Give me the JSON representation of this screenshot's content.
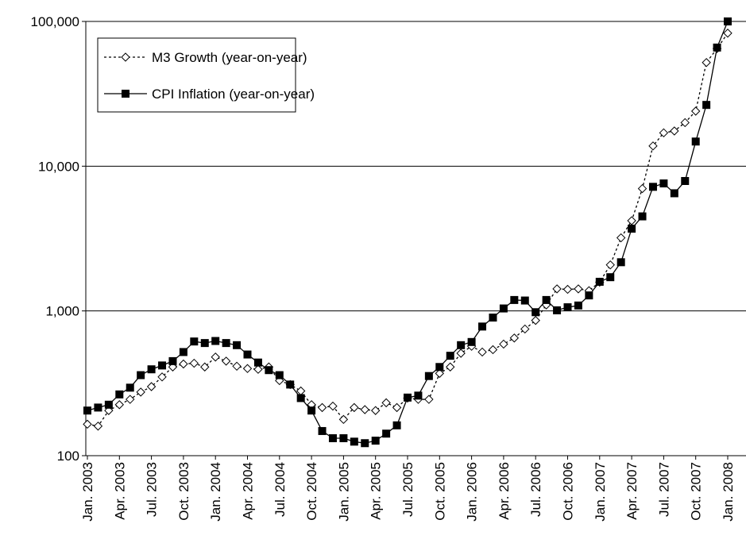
{
  "chart_data": {
    "type": "line",
    "log_scale": true,
    "grid": true,
    "legend": "upper-left",
    "ylim": [
      100,
      100000
    ],
    "yticks": [
      100,
      {
        "value": 1000,
        "label": "1,000"
      },
      {
        "value": 10000,
        "label": "10,000"
      },
      {
        "value": 100000,
        "label": "100,000"
      }
    ],
    "categories": [
      "Jan. 2003",
      null,
      null,
      "Apr. 2003",
      null,
      null,
      "Jul. 2003",
      null,
      null,
      "Oct. 2003",
      null,
      null,
      "Jan. 2004",
      null,
      null,
      "Apr. 2004",
      null,
      null,
      "Jul. 2004",
      null,
      null,
      "Oct. 2004",
      null,
      null,
      "Jan. 2005",
      null,
      null,
      "Apr. 2005",
      null,
      null,
      "Jul. 2005",
      null,
      null,
      "Oct. 2005",
      null,
      null,
      "Jan. 2006",
      null,
      null,
      "Apr. 2006",
      null,
      null,
      "Jul. 2006",
      null,
      null,
      "Oct. 2006",
      null,
      null,
      "Jan. 2007",
      null,
      null,
      "Apr. 2007",
      null,
      null,
      "Jul. 2007",
      null,
      null,
      "Oct. 2007",
      null,
      null,
      "Jan. 2008"
    ],
    "series": [
      {
        "name": "M3 Growth (year-on-year)",
        "color": "#000000",
        "line_style": "dotted",
        "marker": "diamond",
        "values": [
          165,
          160,
          205,
          225,
          245,
          275,
          300,
          350,
          410,
          430,
          435,
          410,
          480,
          450,
          415,
          400,
          395,
          410,
          330,
          310,
          280,
          225,
          215,
          220,
          178,
          215,
          208,
          205,
          232,
          215,
          250,
          245,
          245,
          370,
          410,
          510,
          570,
          520,
          540,
          590,
          650,
          750,
          860,
          1100,
          1420,
          1410,
          1420,
          1380,
          1580,
          2080,
          3200,
          4200,
          7000,
          13800,
          17000,
          17500,
          20000,
          24000,
          52000,
          65000,
          83000
        ]
      },
      {
        "name": "CPI Inflation (year-on-year)",
        "color": "#000000",
        "line_style": "solid",
        "marker": "square",
        "values": [
          205,
          215,
          225,
          265,
          295,
          360,
          395,
          420,
          450,
          520,
          615,
          600,
          620,
          600,
          580,
          500,
          440,
          390,
          360,
          310,
          250,
          205,
          148,
          132,
          132,
          125,
          122,
          127,
          142,
          162,
          252,
          260,
          355,
          410,
          490,
          580,
          610,
          780,
          900,
          1040,
          1190,
          1180,
          980,
          1190,
          1010,
          1060,
          1090,
          1280,
          1590,
          1710,
          2170,
          3700,
          4500,
          7200,
          7600,
          6500,
          7900,
          14800,
          26500,
          66000,
          100000
        ]
      }
    ]
  }
}
